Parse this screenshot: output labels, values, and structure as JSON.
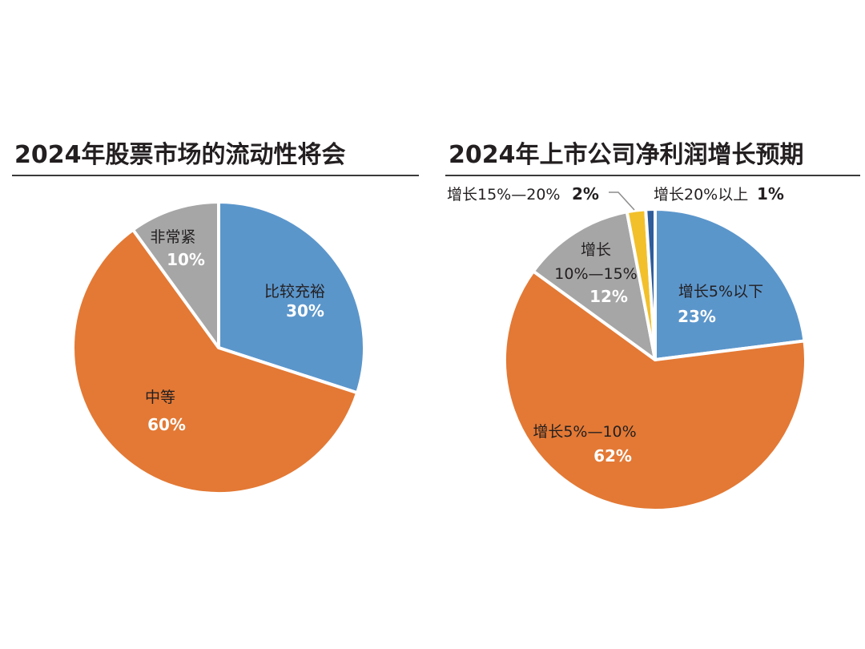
{
  "colors": {
    "blue": "#5b96cb",
    "orange": "#e37935",
    "gray": "#a6a6a6",
    "yellow": "#f2c02b",
    "darkblue": "#2f5d9c",
    "separator": "#ffffff"
  },
  "chart_data": [
    {
      "type": "pie",
      "title": "2024年股票市场的流动性将会",
      "start_angle_deg": 0,
      "direction": "clockwise",
      "slices": [
        {
          "name": "比较充裕",
          "value": 30,
          "label": "30%",
          "color": "blue"
        },
        {
          "name": "中等",
          "value": 60,
          "label": "60%",
          "color": "orange"
        },
        {
          "name": "非常紧",
          "value": 10,
          "label": "10%",
          "color": "gray"
        }
      ]
    },
    {
      "type": "pie",
      "title": "2024年上市公司净利润增长预期",
      "start_angle_deg": 0,
      "direction": "clockwise",
      "slices": [
        {
          "name": "增长5%以下",
          "value": 23,
          "label": "23%",
          "color": "blue"
        },
        {
          "name": "增长5%—10%",
          "value": 62,
          "label": "62%",
          "color": "orange"
        },
        {
          "name": "增长 10%—15%",
          "name_line1": "增长",
          "name_line2": "10%—15%",
          "value": 12,
          "label": "12%",
          "color": "gray"
        },
        {
          "name": "增长15%—20%",
          "value": 2,
          "label": "2%",
          "color": "yellow"
        },
        {
          "name": "增长20%以上",
          "value": 1,
          "label": "1%",
          "color": "darkblue"
        }
      ]
    }
  ]
}
